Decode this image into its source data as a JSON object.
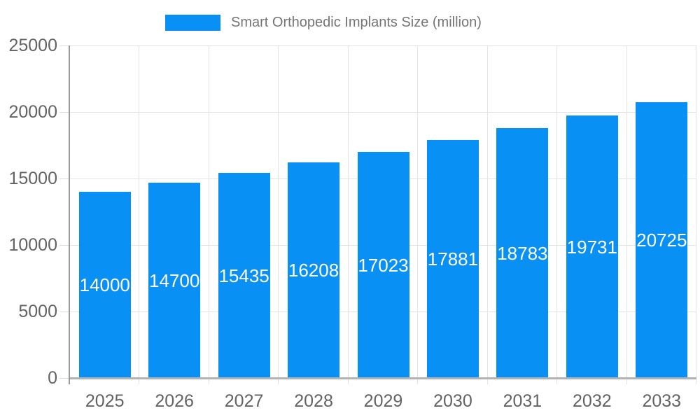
{
  "legend": {
    "swatch_icon": "series-color-swatch"
  },
  "colors": {
    "bar": "#0990F4",
    "bar_label_text": "#ffffff",
    "grid_line": "#e3e3e3",
    "tick_line": "#dcdcdc",
    "y_axis_line": "#9a9a9a",
    "baseline": "#b3b3b3",
    "axis_label_text": "#636363",
    "legend_text": "#757575",
    "background": "#ffffff"
  },
  "chart_data": {
    "type": "bar",
    "title": "Smart Orthopedic Implants Size (million)",
    "series": [
      {
        "name": "Smart Orthopedic Implants Size (million)",
        "values": [
          14000,
          14700,
          15435,
          16208,
          17023,
          17881,
          18783,
          19731,
          20725
        ]
      }
    ],
    "categories": [
      "2025",
      "2026",
      "2027",
      "2028",
      "2029",
      "2030",
      "2031",
      "2032",
      "2033"
    ],
    "data_labels": [
      "14000",
      "14700",
      "15435",
      "16208",
      "17023",
      "17881",
      "18783",
      "19731",
      "20725"
    ],
    "xlabel": "",
    "ylabel": "",
    "ylim": [
      0,
      25000
    ],
    "yticks": [
      0,
      5000,
      10000,
      15000,
      20000,
      25000
    ],
    "ytick_labels": [
      "0",
      "5000",
      "10000",
      "15000",
      "20000",
      "25000"
    ],
    "grid": "on",
    "legend_position": "top",
    "data_label_position": "inside-center"
  }
}
